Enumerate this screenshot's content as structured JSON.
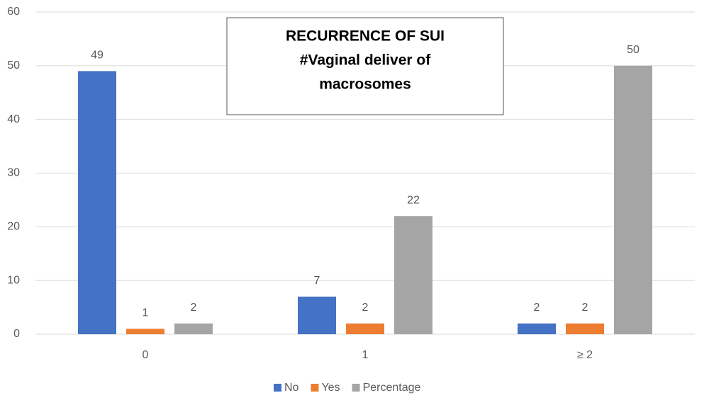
{
  "chart_data": {
    "type": "bar",
    "title": [
      "RECURRENCE OF SUI",
      "#Vaginal deliver of",
      "macrosomes"
    ],
    "categories": [
      "0",
      "1",
      "≥ 2"
    ],
    "series": [
      {
        "name": "No",
        "color": "#4472c4",
        "values": [
          49,
          7,
          2
        ]
      },
      {
        "name": "Yes",
        "color": "#ed7d31",
        "values": [
          1,
          2,
          2
        ]
      },
      {
        "name": "Percentage",
        "color": "#a5a5a5",
        "values": [
          2,
          22,
          50
        ]
      }
    ],
    "ylim": [
      0,
      60
    ],
    "yticks": [
      0,
      10,
      20,
      30,
      40,
      50,
      60
    ],
    "grid": true,
    "legend": "bottom"
  }
}
